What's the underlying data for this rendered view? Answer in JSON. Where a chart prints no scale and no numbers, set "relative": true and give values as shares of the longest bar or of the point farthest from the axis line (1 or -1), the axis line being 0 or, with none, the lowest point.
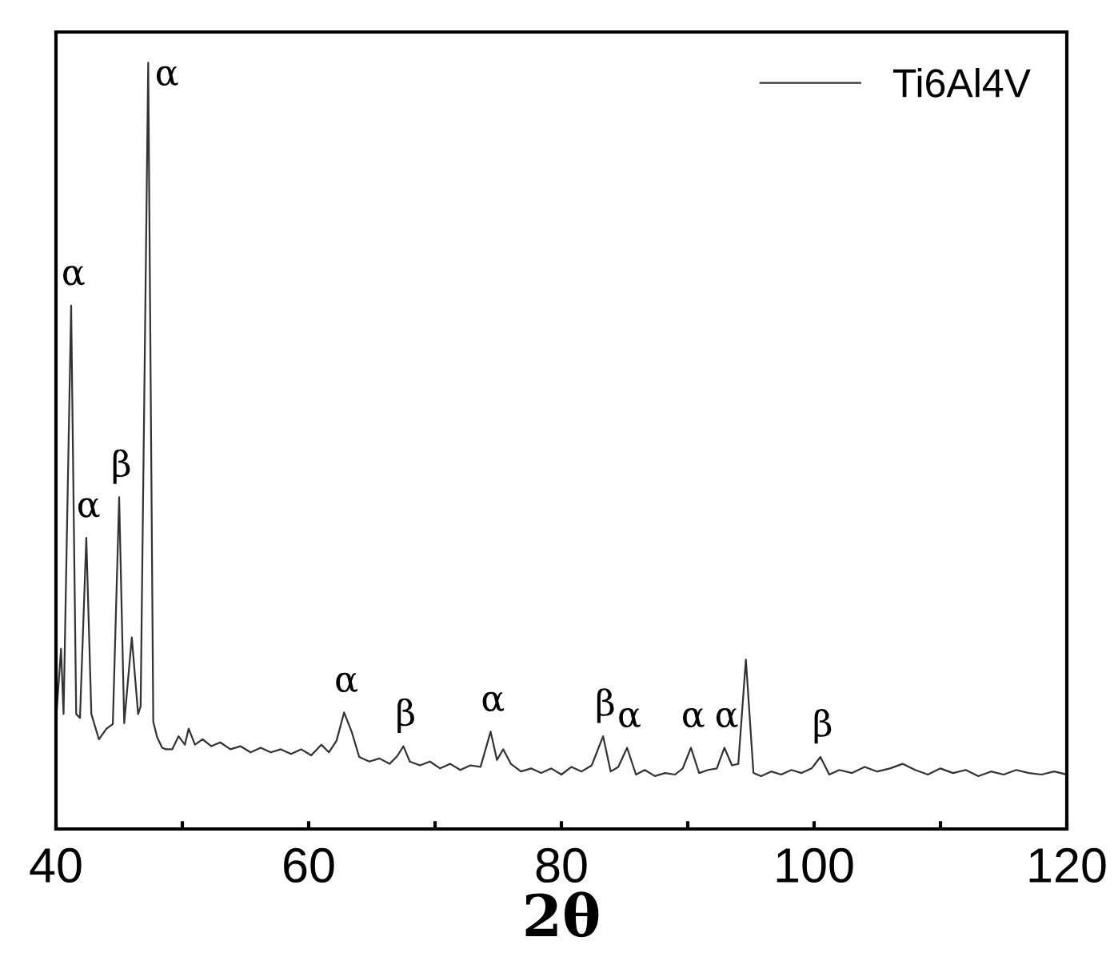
{
  "chart_data": {
    "type": "line",
    "relative": true,
    "xlabel": "2θ",
    "xlim": [
      40,
      120
    ],
    "xticks": [
      40,
      {
        "value": 50,
        "label": null
      },
      60,
      {
        "value": 70,
        "label": null
      },
      80,
      {
        "value": 90,
        "label": null
      },
      100,
      {
        "value": 110,
        "label": null
      },
      120
    ],
    "legend": "top right",
    "grid": false,
    "series": [
      {
        "name": "Ti6Al4V",
        "color": "#333333",
        "x": [
          40.0,
          40.4,
          40.6,
          41.2,
          41.6,
          41.9,
          42.4,
          42.8,
          43.4,
          44.0,
          44.5,
          45.0,
          45.4,
          46.0,
          46.5,
          46.7,
          47.3,
          47.7,
          48.0,
          48.4,
          48.7,
          49.2,
          49.7,
          50.2,
          50.5,
          51.0,
          51.6,
          52.3,
          53.0,
          53.8,
          54.6,
          55.4,
          56.2,
          57.0,
          57.8,
          58.6,
          59.4,
          60.2,
          61.0,
          61.6,
          62.2,
          62.8,
          63.4,
          64.0,
          64.8,
          65.6,
          66.4,
          67.0,
          67.5,
          68.0,
          68.8,
          69.6,
          70.4,
          71.2,
          72.0,
          72.8,
          73.6,
          74.4,
          74.9,
          75.4,
          76.0,
          76.8,
          77.6,
          78.4,
          79.2,
          80.0,
          80.8,
          81.6,
          82.4,
          83.3,
          83.9,
          84.5,
          85.2,
          85.9,
          86.6,
          87.4,
          88.2,
          89.0,
          89.6,
          90.25,
          90.9,
          91.6,
          92.3,
          92.9,
          93.5,
          94.0,
          94.6,
          95.2,
          95.8,
          96.6,
          97.4,
          98.2,
          99.0,
          99.8,
          100.5,
          101.2,
          102.0,
          103.0,
          104.0,
          105.0,
          106.0,
          107.0,
          108.0,
          109.0,
          110.0,
          111.0,
          112.0,
          113.0,
          114.0,
          115.0,
          116.0,
          117.0,
          118.0,
          119.0,
          120.0
        ],
        "values": [
          0.14,
          0.235,
          0.15,
          0.683,
          0.15,
          0.145,
          0.38,
          0.15,
          0.117,
          0.131,
          0.137,
          0.433,
          0.138,
          0.25,
          0.15,
          0.16,
          1.0,
          0.14,
          0.12,
          0.106,
          0.104,
          0.104,
          0.121,
          0.11,
          0.131,
          0.11,
          0.117,
          0.108,
          0.113,
          0.104,
          0.108,
          0.1,
          0.106,
          0.1,
          0.104,
          0.098,
          0.104,
          0.096,
          0.11,
          0.1,
          0.115,
          0.152,
          0.127,
          0.094,
          0.088,
          0.092,
          0.085,
          0.095,
          0.108,
          0.088,
          0.083,
          0.088,
          0.079,
          0.085,
          0.077,
          0.083,
          0.081,
          0.127,
          0.09,
          0.104,
          0.085,
          0.075,
          0.079,
          0.073,
          0.079,
          0.071,
          0.081,
          0.075,
          0.083,
          0.121,
          0.075,
          0.081,
          0.106,
          0.071,
          0.077,
          0.069,
          0.073,
          0.071,
          0.079,
          0.106,
          0.073,
          0.077,
          0.079,
          0.106,
          0.083,
          0.085,
          0.221,
          0.073,
          0.069,
          0.075,
          0.071,
          0.077,
          0.073,
          0.079,
          0.094,
          0.071,
          0.077,
          0.073,
          0.081,
          0.075,
          0.079,
          0.085,
          0.077,
          0.071,
          0.079,
          0.073,
          0.077,
          0.069,
          0.075,
          0.071,
          0.077,
          0.073,
          0.071,
          0.075,
          0.071
        ]
      }
    ],
    "annotations": [
      {
        "text": "α",
        "x": 47.3,
        "y": 1.0
      },
      {
        "text": "α",
        "x": 41.2,
        "y": 0.683
      },
      {
        "text": "α",
        "x": 42.4,
        "y": 0.38
      },
      {
        "text": "β",
        "x": 45.0,
        "y": 0.433
      },
      {
        "text": "α",
        "x": 62.8,
        "y": 0.152
      },
      {
        "text": "β",
        "x": 67.5,
        "y": 0.108
      },
      {
        "text": "α",
        "x": 74.4,
        "y": 0.127
      },
      {
        "text": "β",
        "x": 83.3,
        "y": 0.121
      },
      {
        "text": "α",
        "x": 85.2,
        "y": 0.106
      },
      {
        "text": "α",
        "x": 90.25,
        "y": 0.106
      },
      {
        "text": "α",
        "x": 92.9,
        "y": 0.106
      },
      {
        "text": "β",
        "x": 100.5,
        "y": 0.094
      }
    ]
  }
}
